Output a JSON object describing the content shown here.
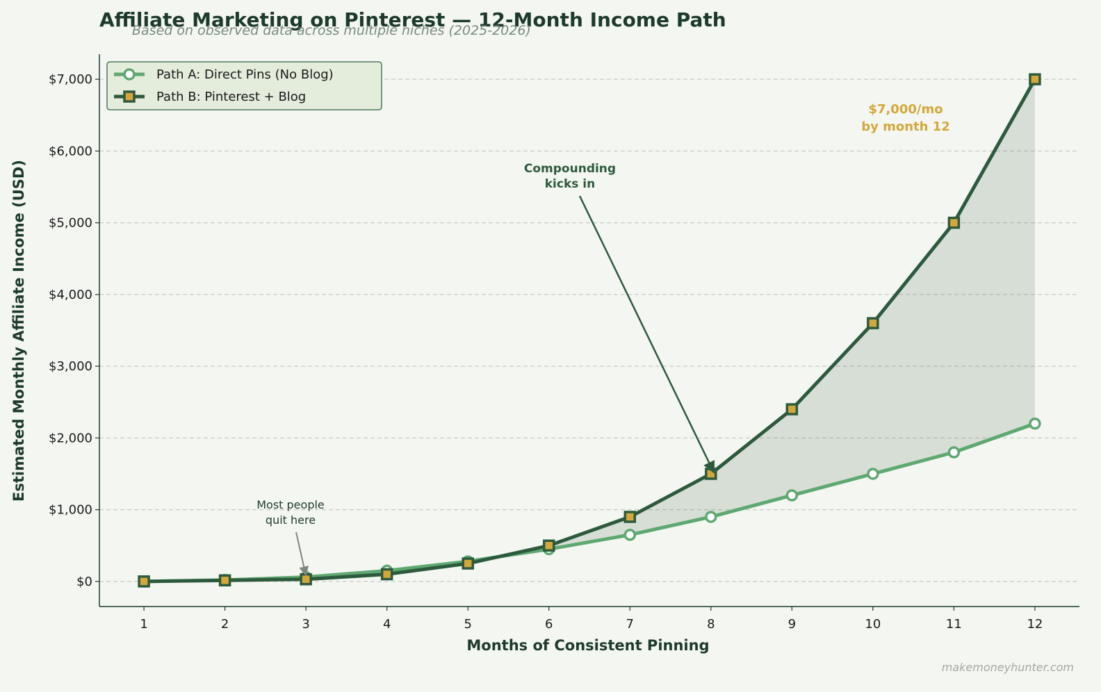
{
  "chart_data": {
    "type": "line",
    "title": "Affiliate Marketing on Pinterest — 12-Month Income Path",
    "subtitle": "Based on observed data across multiple niches (2025-2026)",
    "xlabel": "Months of Consistent Pinning",
    "ylabel": "Estimated Monthly Affiliate Income (USD)",
    "x": [
      1,
      2,
      3,
      4,
      5,
      6,
      7,
      8,
      9,
      10,
      11,
      12
    ],
    "xlim": [
      0.45,
      12.55
    ],
    "ylim": [
      -350,
      7350
    ],
    "yticks": [
      0,
      1000,
      2000,
      3000,
      4000,
      5000,
      6000,
      7000
    ],
    "ytick_labels": [
      "$0",
      "$1,000",
      "$2,000",
      "$3,000",
      "$4,000",
      "$5,000",
      "$6,000",
      "$7,000"
    ],
    "xtick_labels": [
      "1",
      "2",
      "3",
      "4",
      "5",
      "6",
      "7",
      "8",
      "9",
      "10",
      "11",
      "12"
    ],
    "grid": "horizontal dashed",
    "legend_position": "top-left",
    "series": [
      {
        "name": "Path A: Direct Pins (No Blog)",
        "values": [
          0,
          20,
          60,
          150,
          280,
          450,
          650,
          900,
          1200,
          1500,
          1800,
          2200
        ],
        "color": "#5fa871",
        "marker": "circle"
      },
      {
        "name": "Path B: Pinterest + Blog",
        "values": [
          0,
          15,
          30,
          100,
          250,
          500,
          900,
          1500,
          2400,
          3600,
          5000,
          7000
        ],
        "color": "#2d5a3d",
        "marker_fill": "#d4a73a",
        "marker": "square"
      }
    ],
    "fill_between": {
      "color": "#2d5a3d",
      "opacity": 0.15
    },
    "annotations": [
      {
        "text": [
          "Compounding",
          "kicks in"
        ],
        "x": 8,
        "y": 1500
      },
      {
        "text": [
          "Most people",
          "quit here"
        ],
        "x": 3,
        "y": 60
      },
      {
        "text": [
          "$7,000/mo",
          "by month 12"
        ]
      }
    ],
    "watermark": "makemoneyhunter.com"
  }
}
